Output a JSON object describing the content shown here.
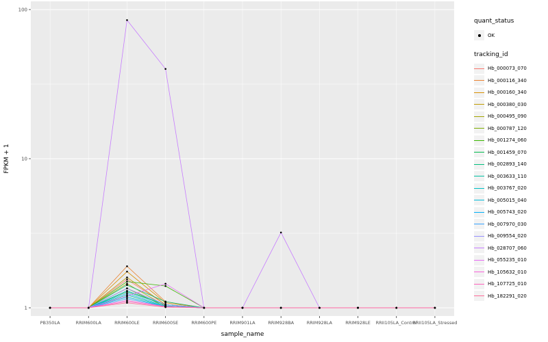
{
  "chart_data": {
    "type": "line",
    "title": "",
    "xlabel": "sample_name",
    "ylabel": "FPKM + 1",
    "y_scale": "log10",
    "y_ticks": [
      1,
      10,
      100
    ],
    "ylim": [
      1,
      100
    ],
    "grid": true,
    "panel_bg": "#EBEBEB",
    "grid_color": "#FFFFFF",
    "point_color": "#000000",
    "legend_position": "right",
    "categories": [
      "PB350LA",
      "RRIM600LA",
      "RRIM600LE",
      "RRIM600SE",
      "RRIM600PE",
      "RRIM901LA",
      "RRIM928BA",
      "RRIM928LA",
      "RRIM928LE",
      "RRII105LA_Control",
      "RRII105LA_Stressed"
    ],
    "series": [
      {
        "name": "Hb_000073_070",
        "color": "#F8766D",
        "values": [
          1,
          1,
          1.55,
          1.05,
          1,
          1,
          1,
          1,
          1,
          1,
          1
        ]
      },
      {
        "name": "Hb_000116_340",
        "color": "#EA8331",
        "values": [
          1,
          1,
          1.9,
          1.1,
          1,
          1,
          1,
          1,
          1,
          1,
          1
        ]
      },
      {
        "name": "Hb_000160_340",
        "color": "#D89000",
        "values": [
          1,
          1,
          1.75,
          1.08,
          1,
          1,
          1,
          1,
          1,
          1,
          1
        ]
      },
      {
        "name": "Hb_000380_030",
        "color": "#C09B00",
        "values": [
          1,
          1,
          1.6,
          1.05,
          1,
          1,
          1,
          1,
          1,
          1,
          1
        ]
      },
      {
        "name": "Hb_000495_090",
        "color": "#A3A500",
        "values": [
          1,
          1,
          1.45,
          1.03,
          1,
          1,
          1,
          1,
          1,
          1,
          1
        ]
      },
      {
        "name": "Hb_000787_120",
        "color": "#7CAE00",
        "values": [
          1,
          1,
          1.35,
          1.02,
          1,
          1,
          1,
          1,
          1,
          1,
          1
        ]
      },
      {
        "name": "Hb_001274_060",
        "color": "#39B600",
        "values": [
          1,
          1,
          1.5,
          1.4,
          1,
          1,
          1,
          1,
          1,
          1,
          1
        ]
      },
      {
        "name": "Hb_001459_070",
        "color": "#00BB4E",
        "values": [
          1,
          1,
          1.28,
          1.05,
          1,
          1,
          1,
          1,
          1,
          1,
          1
        ]
      },
      {
        "name": "Hb_002893_140",
        "color": "#00BF7D",
        "values": [
          1,
          1,
          1.42,
          1.1,
          1,
          1,
          1,
          1,
          1,
          1,
          1
        ]
      },
      {
        "name": "Hb_003633_110",
        "color": "#00C1A3",
        "values": [
          1,
          1,
          1.22,
          1.02,
          1,
          1,
          1,
          1,
          1,
          1,
          1
        ]
      },
      {
        "name": "Hb_003767_020",
        "color": "#00BFC4",
        "values": [
          1,
          1,
          1.3,
          1.05,
          1,
          1,
          1,
          1,
          1,
          1,
          1
        ]
      },
      {
        "name": "Hb_005015_040",
        "color": "#00BBDA",
        "values": [
          1,
          1,
          1.18,
          1.02,
          1,
          1,
          1,
          1,
          1,
          1,
          1
        ]
      },
      {
        "name": "Hb_005743_020",
        "color": "#00B0F6",
        "values": [
          1,
          1,
          1.25,
          1.03,
          1,
          1,
          1,
          1,
          1,
          1,
          1
        ]
      },
      {
        "name": "Hb_007970_030",
        "color": "#35A2FF",
        "values": [
          1,
          1,
          1.15,
          1.02,
          1,
          1,
          1,
          1,
          1,
          1,
          1
        ]
      },
      {
        "name": "Hb_009554_020",
        "color": "#9590FF",
        "values": [
          1,
          1,
          1.35,
          1.05,
          1,
          1,
          1,
          1,
          1,
          1,
          1
        ]
      },
      {
        "name": "Hb_028707_060",
        "color": "#C77CFF",
        "values": [
          1,
          1,
          85,
          40,
          1,
          1,
          3.2,
          1,
          1,
          1,
          1
        ]
      },
      {
        "name": "Hb_055235_010",
        "color": "#E76BF3",
        "values": [
          1,
          1,
          1.2,
          1.45,
          1,
          1,
          1,
          1,
          1,
          1,
          1
        ]
      },
      {
        "name": "Hb_105632_010",
        "color": "#FA62DB",
        "values": [
          1,
          1,
          1.12,
          1.02,
          1,
          1,
          1,
          1,
          1,
          1,
          1
        ]
      },
      {
        "name": "Hb_107725_010",
        "color": "#FF62BC",
        "values": [
          1,
          1,
          1.1,
          1.02,
          1,
          1,
          1,
          1,
          1,
          1,
          1
        ]
      },
      {
        "name": "Hb_182291_020",
        "color": "#FF6A98",
        "values": [
          1,
          1,
          1.08,
          1.01,
          1,
          1,
          1,
          1,
          1,
          1,
          1
        ]
      }
    ]
  },
  "legend": {
    "quant_status": {
      "title": "quant_status",
      "items": [
        "OK"
      ]
    },
    "tracking_id": {
      "title": "tracking_id"
    }
  }
}
